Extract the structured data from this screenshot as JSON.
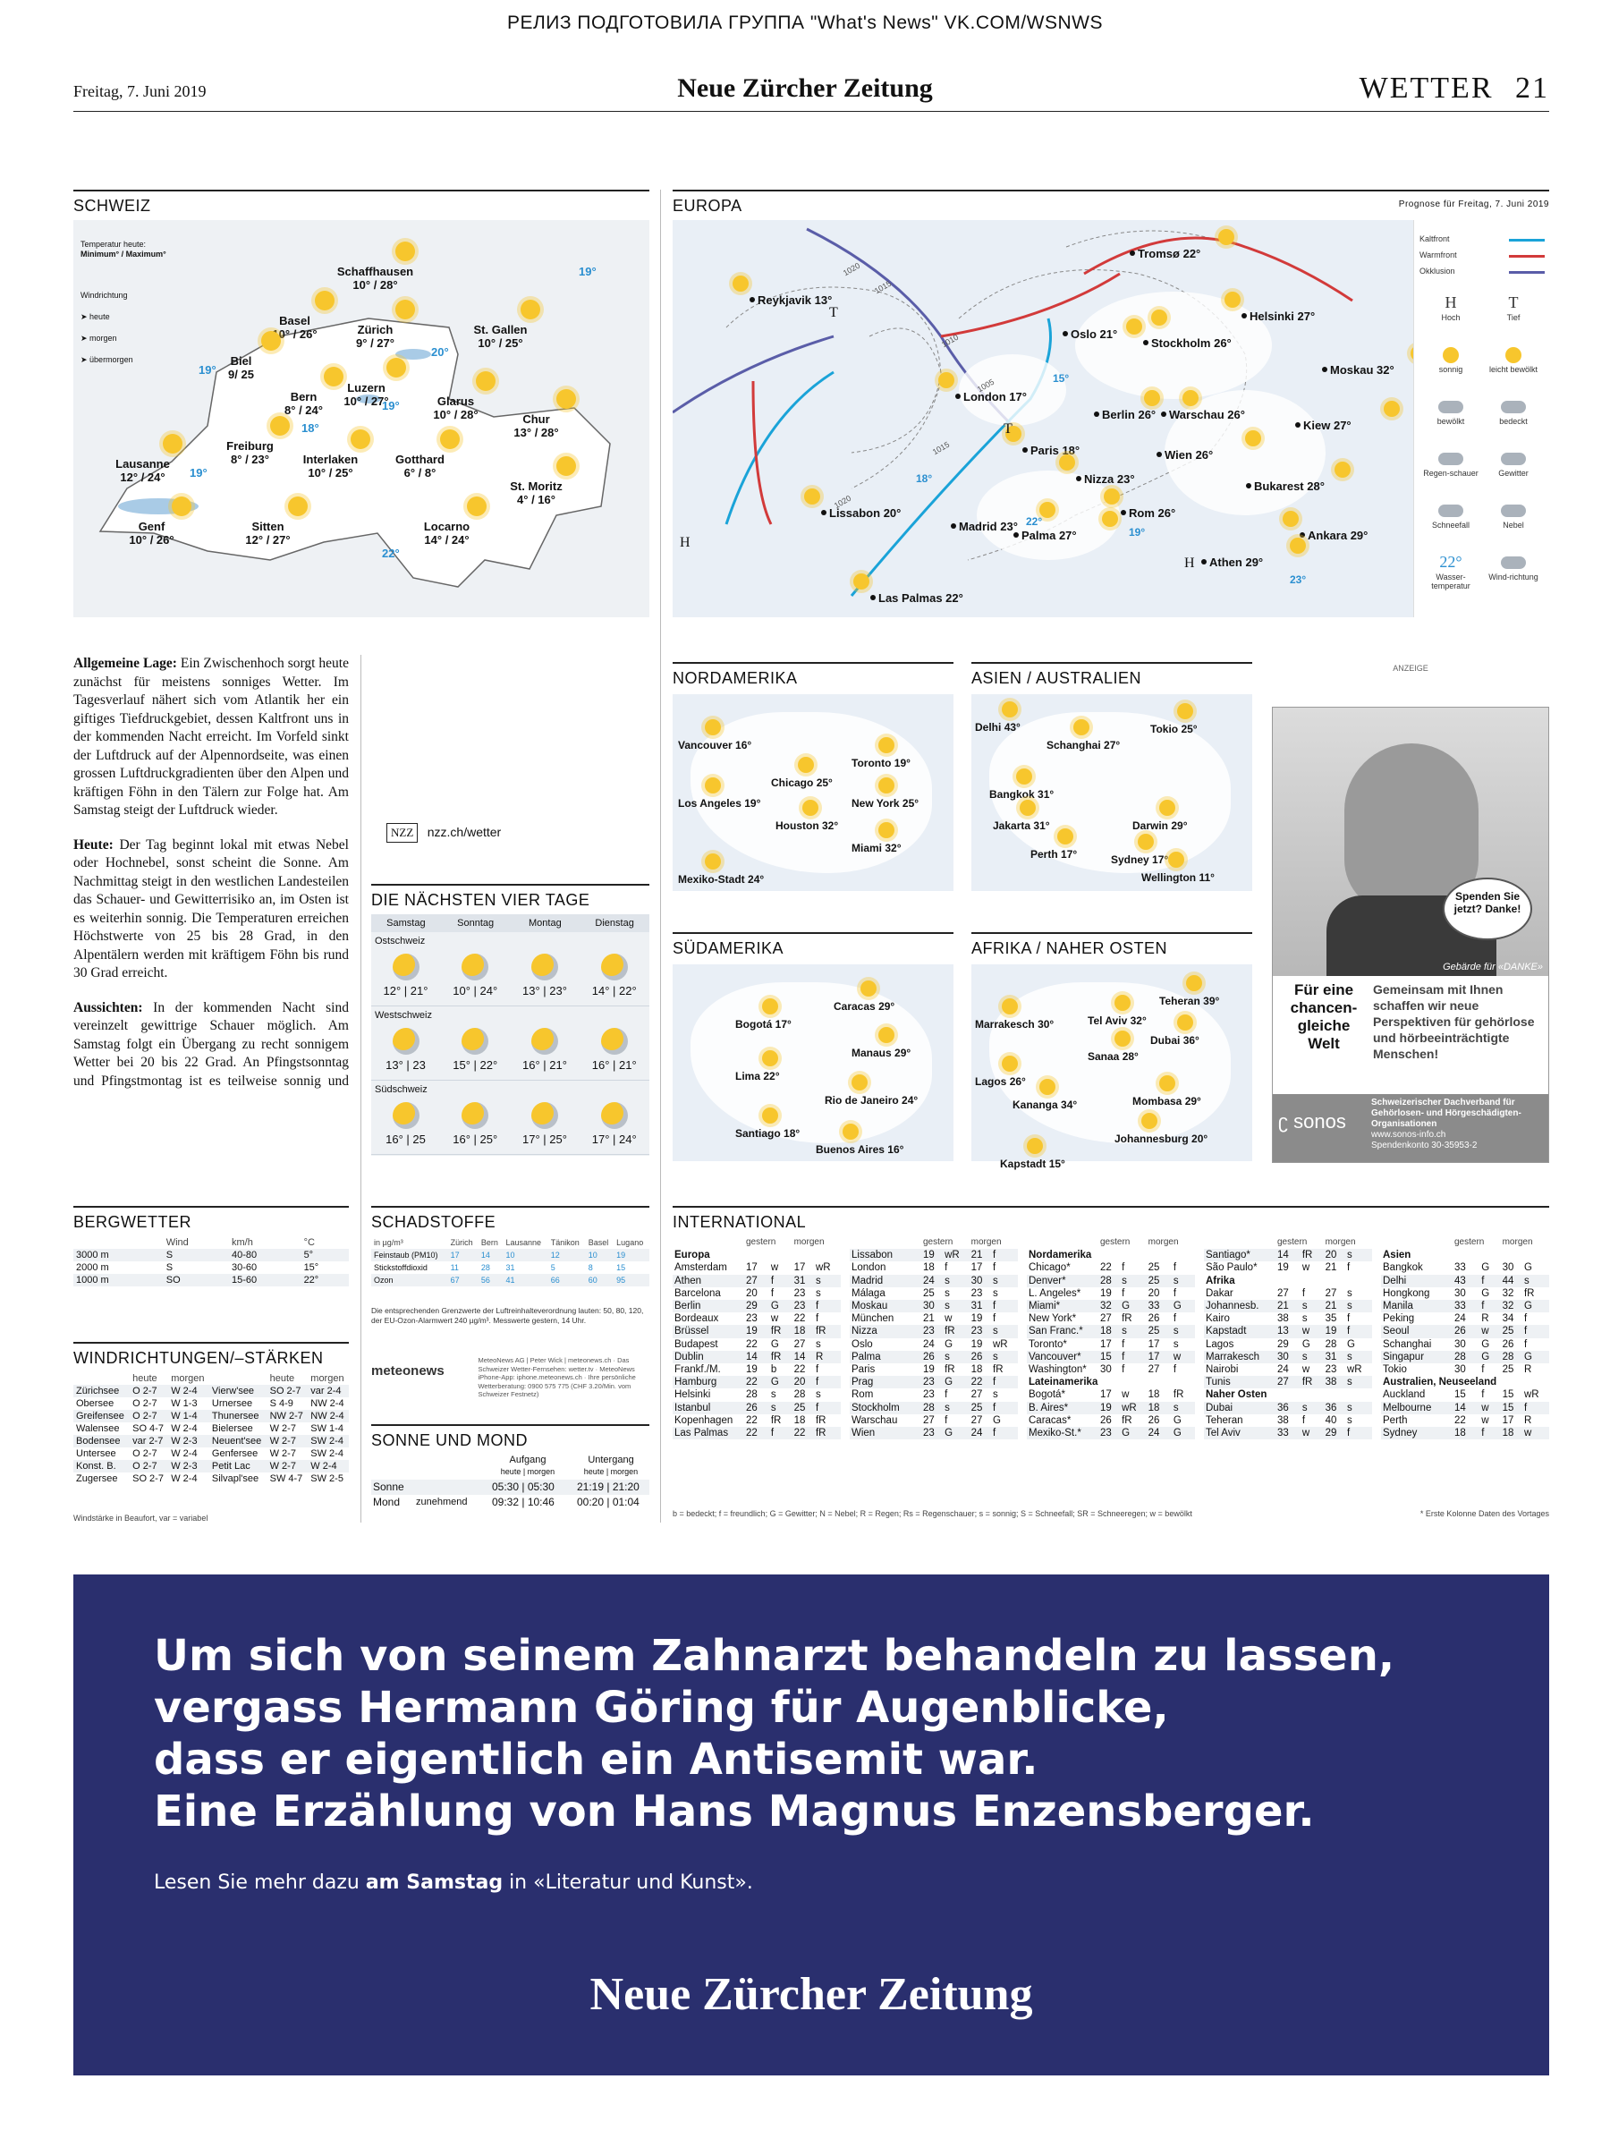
{
  "header": {
    "release": "РЕЛИЗ ПОДГОТОВИЛА ГРУППА \"What's News\" VK.COM/WSNWS",
    "date": "Freitag, 7. Juni 2019",
    "brand": "Neue Zürcher Zeitung",
    "section": "WETTER",
    "page": "21"
  },
  "schweiz": {
    "title": "SCHWEIZ",
    "temp_note": "Temperatur heute:",
    "temp_note2": "Minimum° / Maximum°",
    "wind_title": "Windrichtung",
    "wind_heute": "heute",
    "wind_morgen": "morgen",
    "wind_uebermorgen": "übermorgen",
    "cities": [
      {
        "name": "Schaffhausen",
        "temp": "10° / 28°"
      },
      {
        "name": "Basel",
        "temp": "10° / 26°"
      },
      {
        "name": "Zürich",
        "temp": "9° / 27°"
      },
      {
        "name": "St. Gallen",
        "temp": "10° / 25°"
      },
      {
        "name": "Biel",
        "temp": "9/ 25"
      },
      {
        "name": "Luzern",
        "temp": "10° / 27°"
      },
      {
        "name": "Bern",
        "temp": "8° / 24°"
      },
      {
        "name": "Glarus",
        "temp": "10° / 28°"
      },
      {
        "name": "Chur",
        "temp": "13° / 28°"
      },
      {
        "name": "Freiburg",
        "temp": "8° / 23°"
      },
      {
        "name": "Lausanne",
        "temp": "12° / 24°"
      },
      {
        "name": "Interlaken",
        "temp": "10° / 25°"
      },
      {
        "name": "Gotthard",
        "temp": "6° / 8°"
      },
      {
        "name": "St. Moritz",
        "temp": "4° / 16°"
      },
      {
        "name": "Genf",
        "temp": "10° / 26°"
      },
      {
        "name": "Sitten",
        "temp": "12° / 27°"
      },
      {
        "name": "Locarno",
        "temp": "14° / 24°"
      }
    ],
    "lake_temps": [
      "19°",
      "20°",
      "19°",
      "18°",
      "19°",
      "19°",
      "22°"
    ]
  },
  "europa": {
    "title": "EUROPA",
    "forecast": "Prognose für Freitag, 7. Juni 2019",
    "cities": [
      {
        "name": "Reykjavik",
        "temp": "13°"
      },
      {
        "name": "Tromsø",
        "temp": "22°"
      },
      {
        "name": "Helsinki",
        "temp": "27°"
      },
      {
        "name": "Oslo",
        "temp": "21°"
      },
      {
        "name": "Stockholm",
        "temp": "26°"
      },
      {
        "name": "Moskau",
        "temp": "32°"
      },
      {
        "name": "London",
        "temp": "17°"
      },
      {
        "name": "Berlin",
        "temp": "26°"
      },
      {
        "name": "Warschau",
        "temp": "26°"
      },
      {
        "name": "Kiew",
        "temp": "27°"
      },
      {
        "name": "Paris",
        "temp": "18°"
      },
      {
        "name": "Wien",
        "temp": "26°"
      },
      {
        "name": "Nizza",
        "temp": "23°"
      },
      {
        "name": "Bukarest",
        "temp": "28°"
      },
      {
        "name": "Lissabon",
        "temp": "20°"
      },
      {
        "name": "Madrid",
        "temp": "23°"
      },
      {
        "name": "Rom",
        "temp": "26°"
      },
      {
        "name": "Palma",
        "temp": "27°"
      },
      {
        "name": "Ankara",
        "temp": "29°"
      },
      {
        "name": "Athen",
        "temp": "29°"
      },
      {
        "name": "Las Palmas",
        "temp": "22°"
      }
    ],
    "sea_temps": [
      "15°",
      "18°",
      "22°",
      "19°",
      "23°"
    ],
    "isobars": [
      "1020",
      "1015",
      "1010",
      "1005",
      "1015",
      "1020"
    ],
    "legend": {
      "kaltfront": "Kaltfront",
      "warmfront": "Warmfront",
      "okklusion": "Okklusion",
      "hoch_sym": "H",
      "hoch": "Hoch",
      "tief_sym": "T",
      "tief": "Tief",
      "sonnig": "sonnig",
      "leicht_bewoelkt": "leicht bewölkt",
      "bewoelkt": "bewölkt",
      "bedeckt": "bedeckt",
      "regenschauer": "Regen-schauer",
      "gewitter": "Gewitter",
      "schneefall": "Schneefall",
      "nebel": "Nebel",
      "wasser_temp_val": "22°",
      "wasser_temp": "Wasser-temperatur",
      "windrichtung": "Wind-richtung"
    }
  },
  "text": {
    "lage_head": "Allgemeine Lage:",
    "lage": " Ein Zwischenhoch sorgt heute zunächst für meistens sonniges Wetter. Im Tagesverlauf nähert sich vom Atlantik her ein giftiges Tiefdruckgebiet, dessen Kaltfront uns in der kommenden Nacht erreicht. Im Vorfeld sinkt der Luftdruck auf der Alpennordseite, was einen grossen Luftdruckgradienten über den Alpen und kräftigen Föhn in den Tälern zur Folge hat. Am Samstag steigt der Luftdruck wieder.",
    "heute_head": "Heute:",
    "heute": " Der Tag beginnt lokal mit etwas Nebel oder Hochnebel, sonst scheint die Sonne. Am Nachmittag steigt in den westlichen Landesteilen das Schauer- und Gewitterrisiko an, im Osten ist es weiterhin sonnig. Die Temperaturen erreichen Höchstwerte von 25 bis 28 Grad, in den Alpentälern werden mit kräftigem Föhn bis rund 30 Grad erreicht.",
    "aussichten_head": "Aussichten:",
    "aussichten": " In der kommenden Nacht sind vereinzelt gewittrige Schauer möglich. Am Samstag folgt ein Übergang zu recht sonnigem Wetter bei 20 bis 22 Grad. An Pfingstsonntag und Pfingstmontag ist es teilweise sonnig und warm, jedoch steigt jeweils besonders in der zweiten Tageshälfte das Schauer- und Gewitterrisiko an. Ab Dienstag ist die weitere Wetterentwicklung noch unsicher, voraussichtlich bleibt es veränderlich mit möglichen Schauern und Gewittern.",
    "nzz_badge": "NZZ",
    "nzz_link": "nzz.ch/wetter"
  },
  "vier_tage": {
    "title": "DIE NÄCHSTEN VIER TAGE",
    "days": [
      "Samstag",
      "Sonntag",
      "Montag",
      "Dienstag"
    ],
    "regions": [
      {
        "name": "Ostschweiz",
        "temps": [
          "12° | 21°",
          "10° | 24°",
          "13° | 23°",
          "14° | 22°"
        ]
      },
      {
        "name": "Westschweiz",
        "temps": [
          "13° | 23",
          "15° | 22°",
          "16° | 21°",
          "16° | 21°"
        ]
      },
      {
        "name": "Südschweiz",
        "temps": [
          "16° | 25",
          "16° | 25°",
          "17° | 25°",
          "17° | 24°"
        ]
      }
    ]
  },
  "nordamerika": {
    "title": "NORDAMERIKA",
    "cities": [
      {
        "name": "Vancouver",
        "temp": "16°"
      },
      {
        "name": "Toronto",
        "temp": "19°"
      },
      {
        "name": "Chicago",
        "temp": "25°"
      },
      {
        "name": "New York",
        "temp": "25°"
      },
      {
        "name": "Los Angeles",
        "temp": "19°"
      },
      {
        "name": "Houston",
        "temp": "32°"
      },
      {
        "name": "Miami",
        "temp": "32°"
      },
      {
        "name": "Mexiko-Stadt",
        "temp": "24°"
      }
    ]
  },
  "asien": {
    "title": "ASIEN / AUSTRALIEN",
    "cities": [
      {
        "name": "Delhi",
        "temp": "43°"
      },
      {
        "name": "Schanghai",
        "temp": "27°"
      },
      {
        "name": "Tokio",
        "temp": "25°"
      },
      {
        "name": "Bangkok",
        "temp": "31°"
      },
      {
        "name": "Jakarta",
        "temp": "31°"
      },
      {
        "name": "Darwin",
        "temp": "29°"
      },
      {
        "name": "Perth",
        "temp": "17°"
      },
      {
        "name": "Sydney",
        "temp": "17°"
      },
      {
        "name": "Wellington",
        "temp": "11°"
      }
    ]
  },
  "suedamerika": {
    "title": "SÜDAMERIKA",
    "cities": [
      {
        "name": "Caracas",
        "temp": "29°"
      },
      {
        "name": "Bogotá",
        "temp": "17°"
      },
      {
        "name": "Manaus",
        "temp": "29°"
      },
      {
        "name": "Lima",
        "temp": "22°"
      },
      {
        "name": "Rio de Janeiro",
        "temp": "24°"
      },
      {
        "name": "Santiago",
        "temp": "18°"
      },
      {
        "name": "Buenos Aires",
        "temp": "16°"
      }
    ]
  },
  "afrika": {
    "title": "AFRIKA / NAHER OSTEN",
    "cities": [
      {
        "name": "Teheran",
        "temp": "39°"
      },
      {
        "name": "Marrakesch",
        "temp": "30°"
      },
      {
        "name": "Tel Aviv",
        "temp": "32°"
      },
      {
        "name": "Dubai",
        "temp": "36°"
      },
      {
        "name": "Sanaa",
        "temp": "28°"
      },
      {
        "name": "Lagos",
        "temp": "26°"
      },
      {
        "name": "Kananga",
        "temp": "34°"
      },
      {
        "name": "Mombasa",
        "temp": "29°"
      },
      {
        "name": "Johannesburg",
        "temp": "20°"
      },
      {
        "name": "Kapstadt",
        "temp": "15°"
      }
    ]
  },
  "ad_sonos": {
    "label": "ANZEIGE",
    "bubble": "Spenden Sie jetzt? Danke!",
    "gebaerde": "Gebärde für «DANKE»",
    "headline": "Für eine chancen-gleiche Welt",
    "text": "Gemeinsam mit Ihnen schaffen wir neue Perspektiven für gehörlose und hörbeeinträchtigte Menschen!",
    "org": "Schweizerischer Dachverband für Gehörlosen- und Hörgeschädigten-Organisationen",
    "web": "www.sonos-info.ch",
    "konto": "Spendenkonto 30-35953-2",
    "brand": "sonos"
  },
  "bergwetter": {
    "title": "BERGWETTER",
    "cols": [
      "",
      "Wind",
      "km/h",
      "°C"
    ],
    "rows": [
      [
        "3000 m",
        "S",
        "40-80",
        "5°"
      ],
      [
        "2000 m",
        "S",
        "30-60",
        "15°"
      ],
      [
        "1000 m",
        "SO",
        "15-60",
        "22°"
      ]
    ]
  },
  "wind": {
    "title": "WINDRICHTUNGEN/–STÄRKEN",
    "cols": [
      "",
      "heute",
      "morgen",
      "",
      "heute",
      "morgen"
    ],
    "rows": [
      [
        "Zürichsee",
        "O 2-7",
        "W 2-4",
        "Vierw'see",
        "SO 2-7",
        "var 2-4"
      ],
      [
        "Obersee",
        "O 2-7",
        "W 1-3",
        "Urnersee",
        "S 4-9",
        "NW 2-4"
      ],
      [
        "Greifensee",
        "O 2-7",
        "W 1-4",
        "Thunersee",
        "NW 2-7",
        "NW 2-4"
      ],
      [
        "Walensee",
        "SO 4-7",
        "W 2-4",
        "Bielersee",
        "W 2-7",
        "SW 1-4"
      ],
      [
        "Bodensee",
        "var 2-7",
        "W 2-3",
        "Neuent'see",
        "W 2-7",
        "SW 2-4"
      ],
      [
        "Untersee",
        "O 2-7",
        "W 2-4",
        "Genfersee",
        "W 2-7",
        "SW 2-4"
      ],
      [
        "Konst. B.",
        "O 2-7",
        "W 2-3",
        "Petit Lac",
        "W 2-7",
        "W 2-4"
      ],
      [
        "Zugersee",
        "SO 2-7",
        "W 2-4",
        "Silvapl'see",
        "SW 4-7",
        "SW 2-5"
      ]
    ],
    "note": "Windstärke in Beaufort, var = variabel"
  },
  "schadstoffe": {
    "title": "SCHADSTOFFE",
    "unit": "in µg/m³",
    "cols": [
      "Zürich",
      "Bern",
      "Lausanne",
      "Tänikon",
      "Basel",
      "Lugano"
    ],
    "rows": [
      {
        "name": "Feinstaub (PM10)",
        "vals": [
          "17",
          "14",
          "10",
          "12",
          "10",
          "19"
        ]
      },
      {
        "name": "Stickstoffdioxid",
        "vals": [
          "11",
          "28",
          "31",
          "5",
          "8",
          "15"
        ]
      },
      {
        "name": "Ozon",
        "vals": [
          "67",
          "56",
          "41",
          "66",
          "60",
          "95"
        ]
      }
    ],
    "note": "Die entsprechenden Grenzwerte der Luftreinhalteverordnung lauten: 50, 80, 120, der EU-Ozon-Alarmwert 240 µg/m³. Messwerte gestern, 14 Uhr.",
    "meteo_brand": "meteonews",
    "meteo_info": "MeteoNews AG | Peter Wick | meteonews.ch · Das Schweizer Wetter-Fernsehen: wetter.tv · MeteoNews iPhone-App: iphone.meteonews.ch · Ihre persönliche Wetterberatung: 0900 575 775 (CHF 3.20/Min. vom Schweizer Festnetz)"
  },
  "sonne": {
    "title": "SONNE UND MOND",
    "aufgang": "Aufgang",
    "untergang": "Untergang",
    "sub": "heute | morgen",
    "sonne_label": "Sonne",
    "sonne_auf": "05:30 | 05:30",
    "sonne_unter": "21:19 | 21:20",
    "mond_label": "Mond",
    "mond_phase": "zunehmend",
    "mond_auf": "09:32 | 10:46",
    "mond_unter": "00:20 | 01:04"
  },
  "international": {
    "title": "INTERNATIONAL",
    "gestern": "gestern",
    "morgen": "morgen",
    "col1": [
      {
        "reg": "Europa"
      },
      [
        "Amsterdam",
        "17",
        "w",
        "17",
        "wR"
      ],
      [
        "Athen",
        "27",
        "f",
        "31",
        "s"
      ],
      [
        "Barcelona",
        "20",
        "f",
        "23",
        "s"
      ],
      [
        "Berlin",
        "29",
        "G",
        "23",
        "f"
      ],
      [
        "Bordeaux",
        "23",
        "w",
        "22",
        "f"
      ],
      [
        "Brüssel",
        "19",
        "fR",
        "18",
        "fR"
      ],
      [
        "Budapest",
        "22",
        "G",
        "27",
        "s"
      ],
      [
        "Dublin",
        "14",
        "fR",
        "14",
        "R"
      ],
      [
        "Frankf./M.",
        "19",
        "b",
        "22",
        "f"
      ],
      [
        "Hamburg",
        "22",
        "G",
        "20",
        "f"
      ],
      [
        "Helsinki",
        "28",
        "s",
        "28",
        "s"
      ],
      [
        "Istanbul",
        "26",
        "s",
        "25",
        "f"
      ],
      [
        "Kopenhagen",
        "22",
        "fR",
        "18",
        "fR"
      ],
      [
        "Las Palmas",
        "22",
        "f",
        "22",
        "fR"
      ]
    ],
    "col2": [
      [
        "Lissabon",
        "19",
        "wR",
        "21",
        "f"
      ],
      [
        "London",
        "18",
        "f",
        "17",
        "f"
      ],
      [
        "Madrid",
        "24",
        "s",
        "30",
        "s"
      ],
      [
        "Málaga",
        "25",
        "s",
        "23",
        "s"
      ],
      [
        "Moskau",
        "30",
        "s",
        "31",
        "f"
      ],
      [
        "München",
        "21",
        "w",
        "19",
        "f"
      ],
      [
        "Nizza",
        "23",
        "fR",
        "23",
        "s"
      ],
      [
        "Oslo",
        "24",
        "G",
        "19",
        "wR"
      ],
      [
        "Palma",
        "26",
        "s",
        "26",
        "s"
      ],
      [
        "Paris",
        "19",
        "fR",
        "18",
        "fR"
      ],
      [
        "Prag",
        "23",
        "G",
        "22",
        "f"
      ],
      [
        "Rom",
        "23",
        "f",
        "27",
        "s"
      ],
      [
        "Stockholm",
        "28",
        "s",
        "25",
        "f"
      ],
      [
        "Warschau",
        "27",
        "f",
        "27",
        "G"
      ],
      [
        "Wien",
        "23",
        "G",
        "24",
        "f"
      ]
    ],
    "col3": [
      {
        "reg": "Nordamerika"
      },
      [
        "Chicago*",
        "22",
        "f",
        "25",
        "f"
      ],
      [
        "Denver*",
        "28",
        "s",
        "25",
        "s"
      ],
      [
        "L. Angeles*",
        "19",
        "f",
        "20",
        "f"
      ],
      [
        "Miami*",
        "32",
        "G",
        "33",
        "G"
      ],
      [
        "New York*",
        "27",
        "fR",
        "26",
        "f"
      ],
      [
        "San Franc.*",
        "18",
        "s",
        "25",
        "s"
      ],
      [
        "Toronto*",
        "17",
        "f",
        "17",
        "s"
      ],
      [
        "Vancouver*",
        "15",
        "f",
        "17",
        "w"
      ],
      [
        "Washington*",
        "30",
        "f",
        "27",
        "f"
      ],
      {
        "reg": "Lateinamerika"
      },
      [
        "Bogotá*",
        "17",
        "w",
        "18",
        "fR"
      ],
      [
        "B. Aires*",
        "19",
        "wR",
        "18",
        "s"
      ],
      [
        "Caracas*",
        "26",
        "fR",
        "26",
        "G"
      ],
      [
        "Mexiko-St.*",
        "23",
        "G",
        "24",
        "G"
      ]
    ],
    "col4": [
      [
        "Santiago*",
        "14",
        "fR",
        "20",
        "s"
      ],
      [
        "São Paulo*",
        "19",
        "w",
        "21",
        "f"
      ],
      {
        "reg": "Afrika"
      },
      [
        "Dakar",
        "27",
        "f",
        "27",
        "s"
      ],
      [
        "Johannesb.",
        "21",
        "s",
        "21",
        "s"
      ],
      [
        "Kairo",
        "38",
        "s",
        "35",
        "f"
      ],
      [
        "Kapstadt",
        "13",
        "w",
        "19",
        "f"
      ],
      [
        "Lagos",
        "29",
        "G",
        "28",
        "G"
      ],
      [
        "Marrakesch",
        "30",
        "s",
        "31",
        "s"
      ],
      [
        "Nairobi",
        "24",
        "w",
        "23",
        "wR"
      ],
      [
        "Tunis",
        "27",
        "fR",
        "38",
        "s"
      ],
      {
        "reg": "Naher Osten"
      },
      [
        "Dubai",
        "36",
        "s",
        "36",
        "s"
      ],
      [
        "Teheran",
        "38",
        "f",
        "40",
        "s"
      ],
      [
        "Tel Aviv",
        "33",
        "w",
        "29",
        "f"
      ]
    ],
    "col5": [
      {
        "reg": "Asien"
      },
      [
        "Bangkok",
        "33",
        "G",
        "30",
        "G"
      ],
      [
        "Delhi",
        "43",
        "f",
        "44",
        "s"
      ],
      [
        "Hongkong",
        "30",
        "G",
        "32",
        "fR"
      ],
      [
        "Manila",
        "33",
        "f",
        "32",
        "G"
      ],
      [
        "Peking",
        "24",
        "R",
        "34",
        "f"
      ],
      [
        "Seoul",
        "26",
        "w",
        "25",
        "f"
      ],
      [
        "Schanghai",
        "30",
        "G",
        "26",
        "f"
      ],
      [
        "Singapur",
        "28",
        "G",
        "28",
        "G"
      ],
      [
        "Tokio",
        "30",
        "f",
        "25",
        "R"
      ],
      {
        "reg": "Australien, Neuseeland"
      },
      [
        "Auckland",
        "15",
        "f",
        "15",
        "wR"
      ],
      [
        "Melbourne",
        "14",
        "w",
        "15",
        "f"
      ],
      [
        "Perth",
        "22",
        "w",
        "17",
        "R"
      ],
      [
        "Sydney",
        "18",
        "f",
        "18",
        "w"
      ]
    ],
    "legend": "b = bedeckt; f = freundlich; G = Gewitter; N = Nebel; R = Regen; Rs = Regenschauer; s = sonnig; S = Schneefall; SR = Schneeregen; w = bewölkt",
    "note": "* Erste Kolonne Daten des Vortages"
  },
  "ad_bottom": {
    "line1": "Um sich von seinem Zahnarzt behandeln zu lassen,",
    "line2": "vergass Hermann Göring für Augenblicke,",
    "line3": "dass er eigentlich ein Antisemit war.",
    "line4": "Eine Erzählung von Hans Magnus Enzensberger.",
    "sub_a": "Lesen Sie mehr dazu ",
    "sub_b": "am Samstag",
    "sub_c": " in «Literatur und Kunst».",
    "brand": "Neue Zürcher Zeitung"
  }
}
